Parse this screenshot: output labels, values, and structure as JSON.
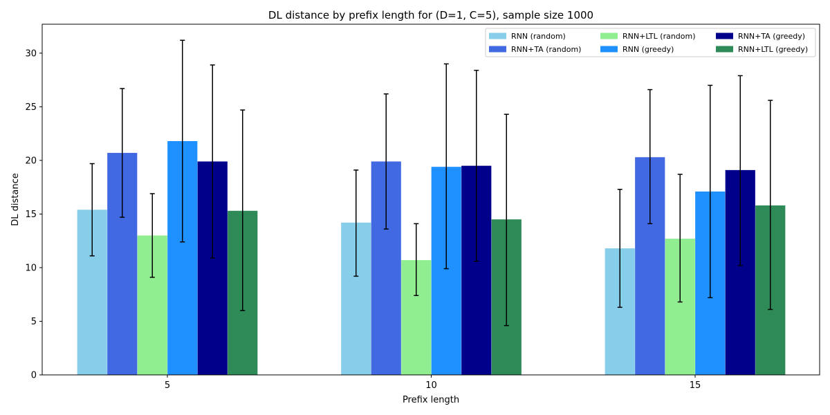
{
  "chart_data": {
    "type": "bar",
    "title": "DL distance by prefix length for (D=1, C=5), sample size 1000",
    "xlabel": "Prefix length",
    "ylabel": "DL distance",
    "categories": [
      "5",
      "10",
      "15"
    ],
    "ylim": [
      0,
      32.7
    ],
    "yticks": [
      0,
      5,
      10,
      15,
      20,
      25,
      30
    ],
    "grid": false,
    "legend_position": "top-right",
    "legend_columns": 3,
    "series": [
      {
        "name": "RNN (random)",
        "color": "#87ceeb",
        "values": [
          15.4,
          14.2,
          11.8
        ],
        "err_low": [
          11.1,
          9.2,
          6.3
        ],
        "err_high": [
          19.7,
          19.1,
          17.3
        ]
      },
      {
        "name": "RNN+TA (random)",
        "color": "#4169e1",
        "values": [
          20.7,
          19.9,
          20.3
        ],
        "err_low": [
          14.7,
          13.6,
          14.1
        ],
        "err_high": [
          26.7,
          26.2,
          26.6
        ]
      },
      {
        "name": "RNN+LTL (random)",
        "color": "#90ee90",
        "values": [
          13.0,
          10.7,
          12.7
        ],
        "err_low": [
          9.1,
          7.4,
          6.8
        ],
        "err_high": [
          16.9,
          14.1,
          18.7
        ]
      },
      {
        "name": "RNN (greedy)",
        "color": "#1e90ff",
        "values": [
          21.8,
          19.4,
          17.1
        ],
        "err_low": [
          12.4,
          9.9,
          7.2
        ],
        "err_high": [
          31.2,
          29.0,
          27.0
        ]
      },
      {
        "name": "RNN+TA (greedy)",
        "color": "#00008b",
        "values": [
          19.9,
          19.5,
          19.1
        ],
        "err_low": [
          10.9,
          10.6,
          10.2
        ],
        "err_high": [
          28.9,
          28.4,
          27.9
        ]
      },
      {
        "name": "RNN+LTL (greedy)",
        "color": "#2e8b57",
        "values": [
          15.3,
          14.5,
          15.8
        ],
        "err_low": [
          6.0,
          4.6,
          6.1
        ],
        "err_high": [
          24.7,
          24.3,
          25.6
        ]
      }
    ]
  }
}
